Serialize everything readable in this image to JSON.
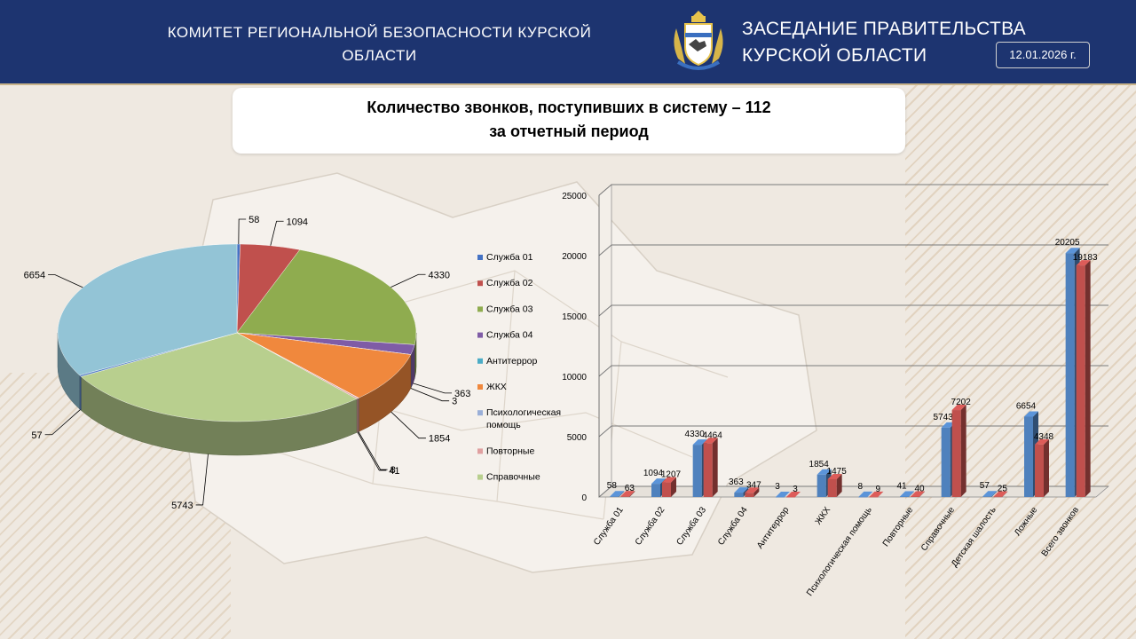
{
  "header": {
    "left_line1": "КОМИТЕТ  РЕГИОНАЛЬНОЙ  БЕЗОПАСНОСТИ  КУРСКОЙ",
    "left_line2": "ОБЛАСТИ",
    "right_line1": "ЗАСЕДАНИЕ ПРАВИТЕЛЬСТВА",
    "right_line2": "КУРСКОЙ ОБЛАСТИ",
    "date": "12.01.2026 г."
  },
  "title": {
    "line1": "Количество звонков, поступивших в систему – 112",
    "line2": "за отчетный период"
  },
  "chart_data": [
    {
      "type": "pie",
      "title": "",
      "categories": [
        "Служба 01",
        "Служба 02",
        "Служба 03",
        "Служба 04",
        "Антитеррор",
        "ЖКХ",
        "Психологическая помощь",
        "Повторные",
        "Справочные",
        "Детская шалость",
        "Ложные"
      ],
      "values": [
        58,
        1094,
        4330,
        363,
        3,
        1854,
        8,
        41,
        5743,
        57,
        6654
      ],
      "legend": [
        "Служба 01",
        "Служба 02",
        "Служба 03",
        "Служба 04",
        "Антитеррор",
        "ЖКХ",
        "Психологическая помощь",
        "Повторные",
        "Справочные"
      ],
      "legend_position": "right",
      "colors": [
        "#4472c4",
        "#c0504d",
        "#8fac4f",
        "#7f5ca6",
        "#4bacc6",
        "#f0883d",
        "#9aafd8",
        "#e0a0a0",
        "#b8cf8e",
        "#5a83c7",
        "#93c4d6"
      ]
    },
    {
      "type": "bar",
      "categories": [
        "Служба 01",
        "Служба 02",
        "Служба 03",
        "Служба 04",
        "Антитеррор",
        "ЖКХ",
        "Психологическая помощь",
        "Повторные",
        "Справочные",
        "Детская шалость",
        "Ложные",
        "Всего звонков"
      ],
      "series": [
        {
          "values": [
            58,
            1094,
            4330,
            363,
            3,
            1854,
            8,
            41,
            5743,
            57,
            6654,
            20205
          ],
          "color": "#4f81bd"
        },
        {
          "values": [
            63,
            1207,
            4464,
            347,
            3,
            1475,
            9,
            40,
            7202,
            25,
            4348,
            19183
          ],
          "color": "#c0504d"
        }
      ],
      "ylim": [
        0,
        25000
      ],
      "yticks": [
        0,
        5000,
        10000,
        15000,
        20000,
        25000
      ],
      "grid": true
    }
  ]
}
